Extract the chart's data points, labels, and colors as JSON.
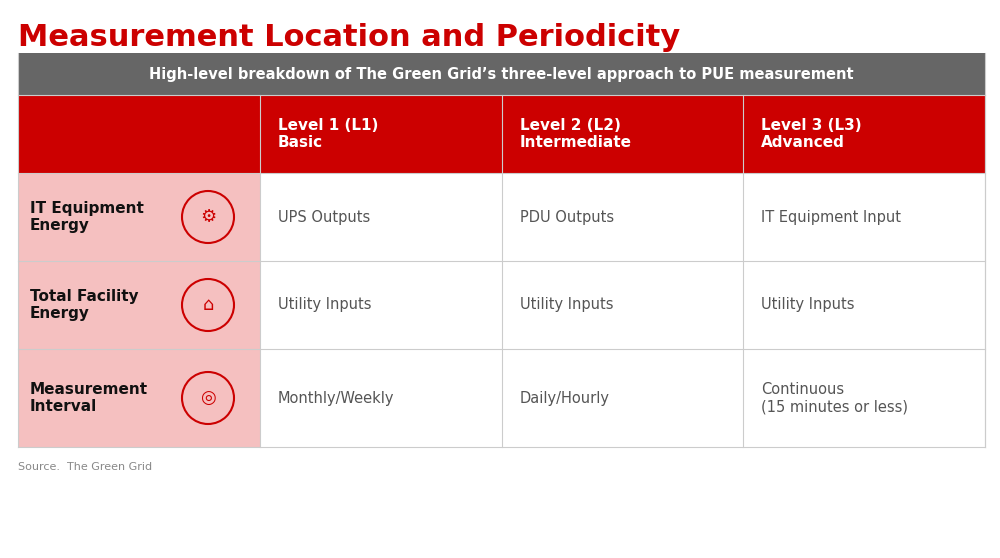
{
  "title": "Measurement Location and Periodicity",
  "title_color": "#CC0000",
  "subtitle": "High-level breakdown of The Green Grid’s three-level approach to PUE measurement",
  "subtitle_bg": "#666666",
  "subtitle_text_color": "#FFFFFF",
  "header_bg": "#CC0000",
  "header_text_color": "#FFFFFF",
  "row_label_bg": "#F5C0C0",
  "row_bg": "#FFFFFF",
  "border_color": "#CCCCCC",
  "source_text": "Source.  The Green Grid",
  "col_headers": [
    "Level 1 (L1)\nBasic",
    "Level 2 (L2)\nIntermediate",
    "Level 3 (L3)\nAdvanced"
  ],
  "row_labels": [
    "IT Equipment\nEnergy",
    "Total Facility\nEnergy",
    "Measurement\nInterval"
  ],
  "table_data": [
    [
      "UPS Outputs",
      "PDU Outputs",
      "IT Equipment Input"
    ],
    [
      "Utility Inputs",
      "Utility Inputs",
      "Utility Inputs"
    ],
    [
      "Monthly/Weekly",
      "Daily/Hourly",
      "Continuous\n(15 minutes or less)"
    ]
  ],
  "fig_bg": "#FFFFFF",
  "text_color": "#555555",
  "row_label_text_color": "#111111"
}
